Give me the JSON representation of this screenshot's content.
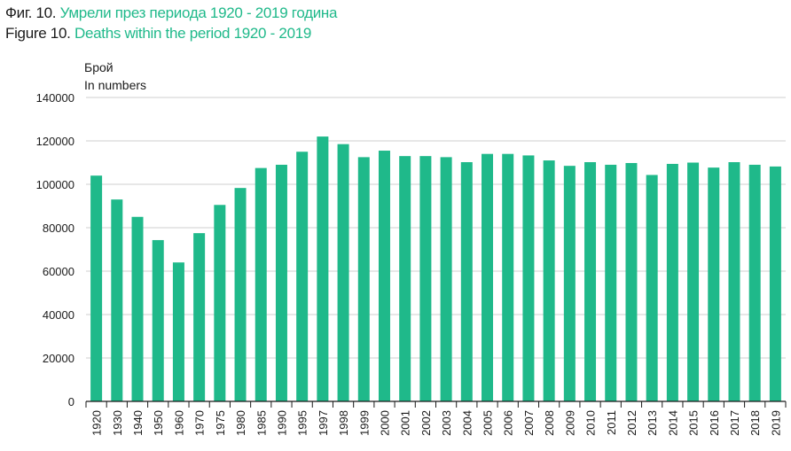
{
  "figure": {
    "bg_number": "Фиг. 10.",
    "bg_title": "Умрели през периода 1920 - 2019 година",
    "en_number": "Figure 10.",
    "en_title": "Deaths within the period 1920 - 2019"
  },
  "chart_data": {
    "type": "bar",
    "ylabel_bg": "Брой",
    "ylabel_en": "In numbers",
    "ylim": [
      0,
      140000
    ],
    "yticks": [
      "0",
      "20000",
      "40000",
      "60000",
      "80000",
      "100000",
      "120000",
      "140000"
    ],
    "grid": true,
    "bar_color": "#1fb98a",
    "categories": [
      "1920",
      "1930",
      "1940",
      "1950",
      "1960",
      "1970",
      "1975",
      "1980",
      "1985",
      "1990",
      "1995",
      "1997",
      "1998",
      "1999",
      "2000",
      "2001",
      "2002",
      "2003",
      "2004",
      "2005",
      "2006",
      "2007",
      "2008",
      "2009",
      "2010",
      "2011",
      "2012",
      "2013",
      "2014",
      "2015",
      "2016",
      "2017",
      "2018",
      "2019"
    ],
    "values": [
      104000,
      93000,
      85000,
      74300,
      64000,
      77500,
      90500,
      98300,
      107500,
      109000,
      115000,
      122000,
      118500,
      112500,
      115500,
      113000,
      113000,
      112500,
      110200,
      114000,
      114000,
      113300,
      111000,
      108500,
      110200,
      109000,
      109800,
      104300,
      109400,
      110000,
      107700,
      110200,
      109000,
      108200
    ]
  }
}
